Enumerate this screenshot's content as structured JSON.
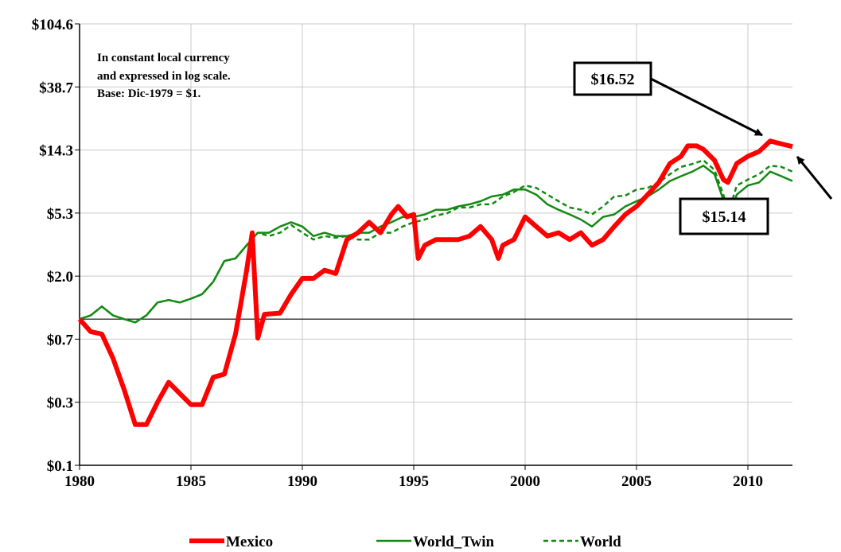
{
  "chart_data": {
    "type": "line",
    "log_scale": true,
    "grid": true,
    "note": [
      "In constant local currency",
      "and expressed in log scale.",
      "Base: Dic-1979 = $1."
    ],
    "reference_line": 1,
    "xlim": [
      1980,
      2012
    ],
    "xticks": [
      1980,
      1985,
      1990,
      1995,
      2000,
      2005,
      2010
    ],
    "ylim": [
      0.1,
      104.6
    ],
    "yticks": [
      {
        "value": 0.1,
        "label": "$0.1"
      },
      {
        "value": 0.27,
        "label": "$0.3"
      },
      {
        "value": 0.729,
        "label": "$0.7"
      },
      {
        "value": 1.968,
        "label": "$2.0"
      },
      {
        "value": 5.314,
        "label": "$5.3"
      },
      {
        "value": 14.349,
        "label": "$14.3"
      },
      {
        "value": 38.742,
        "label": "$38.7"
      },
      {
        "value": 104.6,
        "label": "$104.6"
      }
    ],
    "annotations": [
      {
        "text": "$16.52",
        "value": 16.52
      },
      {
        "text": "$15.14",
        "value": 15.14
      }
    ],
    "series": [
      {
        "name": "Mexico",
        "color": "#ff0000",
        "style": "solid",
        "width": 6,
        "x": [
          1980,
          1980.5,
          1981,
          1981.5,
          1982,
          1982.5,
          1983,
          1983.5,
          1984,
          1984.5,
          1985,
          1985.5,
          1986,
          1986.5,
          1987,
          1987.5,
          1987.75,
          1988,
          1988.3,
          1989,
          1989.5,
          1990,
          1990.5,
          1991,
          1991.5,
          1992,
          1992.5,
          1993,
          1993.5,
          1994,
          1994.3,
          1994.7,
          1995,
          1995.2,
          1995.5,
          1996,
          1997,
          1997.5,
          1998,
          1998.5,
          1998.8,
          1999,
          1999.5,
          2000,
          2000.5,
          2001,
          2001.5,
          2002,
          2002.5,
          2003,
          2003.5,
          2004,
          2004.5,
          2005,
          2005.5,
          2006,
          2006.5,
          2007,
          2007.3,
          2007.7,
          2008,
          2008.5,
          2008.9,
          2009.1,
          2009.5,
          2010,
          2010.5,
          2011,
          2011.5,
          2012
        ],
        "values": [
          1.0,
          0.82,
          0.79,
          0.54,
          0.33,
          0.19,
          0.19,
          0.27,
          0.37,
          0.31,
          0.26,
          0.26,
          0.4,
          0.42,
          0.79,
          2.16,
          3.9,
          0.74,
          1.08,
          1.1,
          1.48,
          1.9,
          1.9,
          2.16,
          2.05,
          3.5,
          3.9,
          4.6,
          3.9,
          5.2,
          5.9,
          5.0,
          5.2,
          2.6,
          3.2,
          3.5,
          3.5,
          3.7,
          4.3,
          3.5,
          2.6,
          3.2,
          3.5,
          5.0,
          4.3,
          3.7,
          3.9,
          3.5,
          3.9,
          3.2,
          3.5,
          4.3,
          5.2,
          5.9,
          7.1,
          8.6,
          11.6,
          13,
          15.3,
          15.3,
          14.5,
          12.2,
          9.0,
          8.6,
          11.6,
          13,
          14,
          16.52,
          15.8,
          15.14
        ]
      },
      {
        "name": "World_Twin",
        "color": "#138a13",
        "style": "solid",
        "width": 2.5,
        "x": [
          1980,
          1980.5,
          1981,
          1981.5,
          1982,
          1982.5,
          1983,
          1983.5,
          1984,
          1984.5,
          1985,
          1985.5,
          1986,
          1986.5,
          1987,
          1987.5,
          1988,
          1988.5,
          1989,
          1989.5,
          1990,
          1990.5,
          1991,
          1991.5,
          1992,
          1992.5,
          1993,
          1993.5,
          1994,
          1994.5,
          1995,
          1995.5,
          1996,
          1996.5,
          1997,
          1997.5,
          1998,
          1998.5,
          1999,
          1999.5,
          2000,
          2000.5,
          2001,
          2001.5,
          2002,
          2002.5,
          2003,
          2003.5,
          2004,
          2004.5,
          2005,
          2005.5,
          2006,
          2006.5,
          2007,
          2007.5,
          2008,
          2008.5,
          2009,
          2009.2,
          2009.5,
          2010,
          2010.5,
          2011,
          2011.5,
          2012
        ],
        "values": [
          1.0,
          1.06,
          1.22,
          1.06,
          1.0,
          0.95,
          1.06,
          1.3,
          1.35,
          1.3,
          1.38,
          1.48,
          1.8,
          2.5,
          2.6,
          3.2,
          3.9,
          3.9,
          4.3,
          4.6,
          4.3,
          3.7,
          3.9,
          3.7,
          3.7,
          3.9,
          3.9,
          4.3,
          4.6,
          5.0,
          5.0,
          5.2,
          5.6,
          5.6,
          5.9,
          6.1,
          6.4,
          6.9,
          7.1,
          7.7,
          7.7,
          7.1,
          6.1,
          5.6,
          5.2,
          4.8,
          4.3,
          5.0,
          5.2,
          5.9,
          6.4,
          6.9,
          7.7,
          8.8,
          9.5,
          10.2,
          11.2,
          9.8,
          5.9,
          5.2,
          7.1,
          8.2,
          8.6,
          10.2,
          9.5,
          8.8
        ]
      },
      {
        "name": "World",
        "color": "#138a13",
        "style": "dashed",
        "width": 2.5,
        "x": [
          1980,
          1980.5,
          1981,
          1981.5,
          1982,
          1982.5,
          1983,
          1983.5,
          1984,
          1984.5,
          1985,
          1985.5,
          1986,
          1986.5,
          1987,
          1987.5,
          1988,
          1988.5,
          1989,
          1989.5,
          1990,
          1990.5,
          1991,
          1991.5,
          1992,
          1992.5,
          1993,
          1993.5,
          1994,
          1994.5,
          1995,
          1995.5,
          1996,
          1996.5,
          1997,
          1997.5,
          1998,
          1998.5,
          1999,
          1999.5,
          2000,
          2000.5,
          2001,
          2001.5,
          2002,
          2002.5,
          2003,
          2003.5,
          2004,
          2004.5,
          2005,
          2005.5,
          2006,
          2006.5,
          2007,
          2007.5,
          2008,
          2008.5,
          2009,
          2009.2,
          2009.5,
          2010,
          2010.5,
          2011,
          2011.5,
          2012
        ],
        "values": [
          1.0,
          1.06,
          1.22,
          1.06,
          1.0,
          0.95,
          1.06,
          1.3,
          1.35,
          1.3,
          1.38,
          1.48,
          1.8,
          2.5,
          2.6,
          3.2,
          3.9,
          3.7,
          3.9,
          4.4,
          3.9,
          3.5,
          3.7,
          3.6,
          3.7,
          3.5,
          3.5,
          3.9,
          3.9,
          4.3,
          4.6,
          4.8,
          5.1,
          5.3,
          5.8,
          5.8,
          6.1,
          6.1,
          6.9,
          7.4,
          8.2,
          7.9,
          7.1,
          6.4,
          5.8,
          5.6,
          5.2,
          5.9,
          6.9,
          7.0,
          7.7,
          7.9,
          8.6,
          9.8,
          11,
          11.5,
          12.2,
          10.5,
          6.4,
          5.8,
          8.2,
          9,
          9.8,
          11.2,
          11,
          10.2
        ]
      }
    ]
  }
}
